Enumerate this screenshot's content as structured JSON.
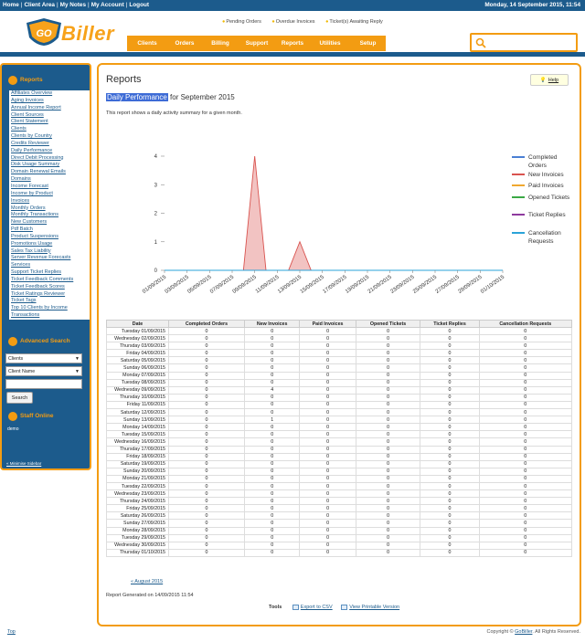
{
  "topbar": {
    "links": [
      "Home",
      "Client Area",
      "My Notes",
      "My Account",
      "Logout"
    ],
    "date": "Monday, 14 September 2015, 11:54"
  },
  "header": {
    "logo_text": "Biller",
    "logo_badge": "GO",
    "alerts": [
      "Pending Orders",
      "Overdue Invoices",
      "Ticket(s) Awaiting Reply"
    ],
    "nav": [
      "Clients",
      "Orders",
      "Billing",
      "Support",
      "Reports",
      "Utilities",
      "Setup"
    ]
  },
  "sidebar": {
    "reports_title": "Reports",
    "report_links": [
      "Affiliates Overview",
      "Aging Invoices",
      "Annual Income Report",
      "Client Sources",
      "Client Statement",
      "Clients",
      "Clients by Country",
      "Credits Reviewer",
      "Daily Performance",
      "Direct Debit Processing",
      "Disk Usage Summary",
      "Domain Renewal Emails",
      "Domains",
      "Income Forecast",
      "Income by Product",
      "Invoices",
      "Monthly Orders",
      "Monthly Transactions",
      "New Customers",
      "Pdf Batch",
      "Product Suspensions",
      "Promotions Usage",
      "Sales Tax Liability",
      "Server Revenue Forecasts",
      "Services",
      "Support Ticket Replies",
      "Ticket Feedback Comments",
      "Ticket Feedback Scores",
      "Ticket Ratings Reviewer",
      "Ticket Tags",
      "Top 10 Clients by Income",
      "Transactions"
    ],
    "advanced_search_title": "Advanced Search",
    "search_type": "Clients",
    "search_field": "Client Name",
    "search_button": "Search",
    "staff_online_title": "Staff Online",
    "staff_online_user": "demo",
    "minimise_link": "« Minimise Sidebar"
  },
  "main": {
    "title": "Reports",
    "help_label": "Help",
    "subtitle_highlight": "Daily Performance",
    "subtitle_rest": " for September 2015",
    "description": "This report shows a daily activity summary for a given month.",
    "table_headers": [
      "Date",
      "Completed Orders",
      "New Invoices",
      "Paid Invoices",
      "Opened Tickets",
      "Ticket Replies",
      "Cancellation Requests"
    ],
    "rows": [
      [
        "Tuesday 01/09/2015",
        "0",
        "0",
        "0",
        "0",
        "0",
        "0"
      ],
      [
        "Wednesday 02/09/2015",
        "0",
        "0",
        "0",
        "0",
        "0",
        "0"
      ],
      [
        "Thursday 03/09/2015",
        "0",
        "0",
        "0",
        "0",
        "0",
        "0"
      ],
      [
        "Friday 04/09/2015",
        "0",
        "0",
        "0",
        "0",
        "0",
        "0"
      ],
      [
        "Saturday 05/09/2015",
        "0",
        "0",
        "0",
        "0",
        "0",
        "0"
      ],
      [
        "Sunday 06/09/2015",
        "0",
        "0",
        "0",
        "0",
        "0",
        "0"
      ],
      [
        "Monday 07/09/2015",
        "0",
        "0",
        "0",
        "0",
        "0",
        "0"
      ],
      [
        "Tuesday 08/09/2015",
        "0",
        "0",
        "0",
        "0",
        "0",
        "0"
      ],
      [
        "Wednesday 09/09/2015",
        "0",
        "4",
        "0",
        "0",
        "0",
        "0"
      ],
      [
        "Thursday 10/09/2015",
        "0",
        "0",
        "0",
        "0",
        "0",
        "0"
      ],
      [
        "Friday 11/09/2015",
        "0",
        "0",
        "0",
        "0",
        "0",
        "0"
      ],
      [
        "Saturday 12/09/2015",
        "0",
        "0",
        "0",
        "0",
        "0",
        "0"
      ],
      [
        "Sunday 13/09/2015",
        "0",
        "1",
        "0",
        "0",
        "0",
        "0"
      ],
      [
        "Monday 14/09/2015",
        "0",
        "0",
        "0",
        "0",
        "0",
        "0"
      ],
      [
        "Tuesday 15/09/2015",
        "0",
        "0",
        "0",
        "0",
        "0",
        "0"
      ],
      [
        "Wednesday 16/09/2015",
        "0",
        "0",
        "0",
        "0",
        "0",
        "0"
      ],
      [
        "Thursday 17/09/2015",
        "0",
        "0",
        "0",
        "0",
        "0",
        "0"
      ],
      [
        "Friday 18/09/2015",
        "0",
        "0",
        "0",
        "0",
        "0",
        "0"
      ],
      [
        "Saturday 19/09/2015",
        "0",
        "0",
        "0",
        "0",
        "0",
        "0"
      ],
      [
        "Sunday 20/09/2015",
        "0",
        "0",
        "0",
        "0",
        "0",
        "0"
      ],
      [
        "Monday 21/09/2015",
        "0",
        "0",
        "0",
        "0",
        "0",
        "0"
      ],
      [
        "Tuesday 22/09/2015",
        "0",
        "0",
        "0",
        "0",
        "0",
        "0"
      ],
      [
        "Wednesday 23/09/2015",
        "0",
        "0",
        "0",
        "0",
        "0",
        "0"
      ],
      [
        "Thursday 24/09/2015",
        "0",
        "0",
        "0",
        "0",
        "0",
        "0"
      ],
      [
        "Friday 25/09/2015",
        "0",
        "0",
        "0",
        "0",
        "0",
        "0"
      ],
      [
        "Saturday 26/09/2015",
        "0",
        "0",
        "0",
        "0",
        "0",
        "0"
      ],
      [
        "Sunday 27/09/2015",
        "0",
        "0",
        "0",
        "0",
        "0",
        "0"
      ],
      [
        "Monday 28/09/2015",
        "0",
        "0",
        "0",
        "0",
        "0",
        "0"
      ],
      [
        "Tuesday 29/09/2015",
        "0",
        "0",
        "0",
        "0",
        "0",
        "0"
      ],
      [
        "Wednesday 30/09/2015",
        "0",
        "0",
        "0",
        "0",
        "0",
        "0"
      ],
      [
        "Thursday 01/10/2015",
        "0",
        "0",
        "0",
        "0",
        "0",
        "0"
      ]
    ],
    "prev_link": "« August 2015",
    "generated": "Report Generated on 14/09/2015 11:54",
    "tools_label": "Tools",
    "export_csv": "Export to CSV",
    "printable": "View Printable Version"
  },
  "footer": {
    "top_link": "Top",
    "copyright_prefix": "Copyright © ",
    "copyright_link": "GoBiller",
    "copyright_suffix": ". All Rights Reserved."
  },
  "colors": {
    "brand_blue": "#1c5b8c",
    "accent_orange": "#f39c12",
    "new_invoices": "#d9534f",
    "completed_orders": "#4a7fd4"
  },
  "chart_data": {
    "type": "area",
    "x": [
      "01/09/2015",
      "02/09/2015",
      "03/09/2015",
      "04/09/2015",
      "05/09/2015",
      "06/09/2015",
      "07/09/2015",
      "08/09/2015",
      "09/09/2015",
      "10/09/2015",
      "11/09/2015",
      "12/09/2015",
      "13/09/2015",
      "14/09/2015",
      "15/09/2015",
      "16/09/2015",
      "17/09/2015",
      "18/09/2015",
      "19/09/2015",
      "20/09/2015",
      "21/09/2015",
      "22/09/2015",
      "23/09/2015",
      "24/09/2015",
      "25/09/2015",
      "26/09/2015",
      "27/09/2015",
      "28/09/2015",
      "29/09/2015",
      "30/09/2015",
      "01/10/2015"
    ],
    "x_tick_labels": [
      "01/09/2015",
      "03/09/2015",
      "05/09/2015",
      "07/09/2015",
      "09/09/2015",
      "11/09/2015",
      "13/09/2015",
      "15/09/2015",
      "17/09/2015",
      "19/09/2015",
      "21/09/2015",
      "23/09/2015",
      "25/09/2015",
      "27/09/2015",
      "29/09/2015",
      "01/10/2015"
    ],
    "y_ticks": [
      0,
      1,
      2,
      3,
      4
    ],
    "ylim": [
      0,
      4
    ],
    "legend_position": "right",
    "series": [
      {
        "name": "Completed Orders",
        "color": "#4a7fd4",
        "values": [
          0,
          0,
          0,
          0,
          0,
          0,
          0,
          0,
          0,
          0,
          0,
          0,
          0,
          0,
          0,
          0,
          0,
          0,
          0,
          0,
          0,
          0,
          0,
          0,
          0,
          0,
          0,
          0,
          0,
          0,
          0
        ]
      },
      {
        "name": "New Invoices",
        "color": "#d9534f",
        "values": [
          0,
          0,
          0,
          0,
          0,
          0,
          0,
          0,
          4,
          0,
          0,
          0,
          1,
          0,
          0,
          0,
          0,
          0,
          0,
          0,
          0,
          0,
          0,
          0,
          0,
          0,
          0,
          0,
          0,
          0,
          0
        ]
      },
      {
        "name": "Paid Invoices",
        "color": "#f0a830",
        "values": [
          0,
          0,
          0,
          0,
          0,
          0,
          0,
          0,
          0,
          0,
          0,
          0,
          0,
          0,
          0,
          0,
          0,
          0,
          0,
          0,
          0,
          0,
          0,
          0,
          0,
          0,
          0,
          0,
          0,
          0,
          0
        ]
      },
      {
        "name": "Opened Tickets",
        "color": "#3aa845",
        "values": [
          0,
          0,
          0,
          0,
          0,
          0,
          0,
          0,
          0,
          0,
          0,
          0,
          0,
          0,
          0,
          0,
          0,
          0,
          0,
          0,
          0,
          0,
          0,
          0,
          0,
          0,
          0,
          0,
          0,
          0,
          0
        ]
      },
      {
        "name": "Ticket Replies",
        "color": "#8e3a9e",
        "values": [
          0,
          0,
          0,
          0,
          0,
          0,
          0,
          0,
          0,
          0,
          0,
          0,
          0,
          0,
          0,
          0,
          0,
          0,
          0,
          0,
          0,
          0,
          0,
          0,
          0,
          0,
          0,
          0,
          0,
          0,
          0
        ]
      },
      {
        "name": "Cancellation Requests",
        "color": "#2aa3d8",
        "values": [
          0,
          0,
          0,
          0,
          0,
          0,
          0,
          0,
          0,
          0,
          0,
          0,
          0,
          0,
          0,
          0,
          0,
          0,
          0,
          0,
          0,
          0,
          0,
          0,
          0,
          0,
          0,
          0,
          0,
          0,
          0
        ]
      }
    ]
  }
}
